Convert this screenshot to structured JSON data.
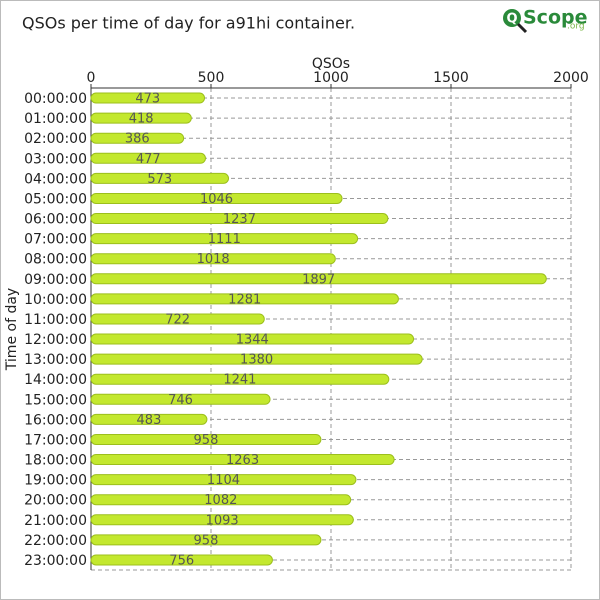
{
  "chart_data": {
    "type": "bar",
    "orientation": "horizontal",
    "title": "QSOs per time of day for a91hi container.",
    "x_label": "QSOs",
    "y_label": "Time of day",
    "categories": [
      "00:00:00",
      "01:00:00",
      "02:00:00",
      "03:00:00",
      "04:00:00",
      "05:00:00",
      "06:00:00",
      "07:00:00",
      "08:00:00",
      "09:00:00",
      "10:00:00",
      "11:00:00",
      "12:00:00",
      "13:00:00",
      "14:00:00",
      "15:00:00",
      "16:00:00",
      "17:00:00",
      "18:00:00",
      "19:00:00",
      "20:00:00",
      "21:00:00",
      "22:00:00",
      "23:00:00"
    ],
    "values": [
      473,
      418,
      386,
      477,
      573,
      1046,
      1237,
      1111,
      1018,
      1897,
      1281,
      722,
      1344,
      1380,
      1241,
      746,
      483,
      958,
      1263,
      1104,
      1082,
      1093,
      958,
      756
    ],
    "color": "#c3e82e",
    "xlim": [
      0,
      2000
    ],
    "xticks": [
      0,
      500,
      1000,
      1500,
      2000
    ],
    "grid": true
  },
  "logo": {
    "letter": "Q",
    "text": "Scope",
    "suffix": ".org"
  }
}
